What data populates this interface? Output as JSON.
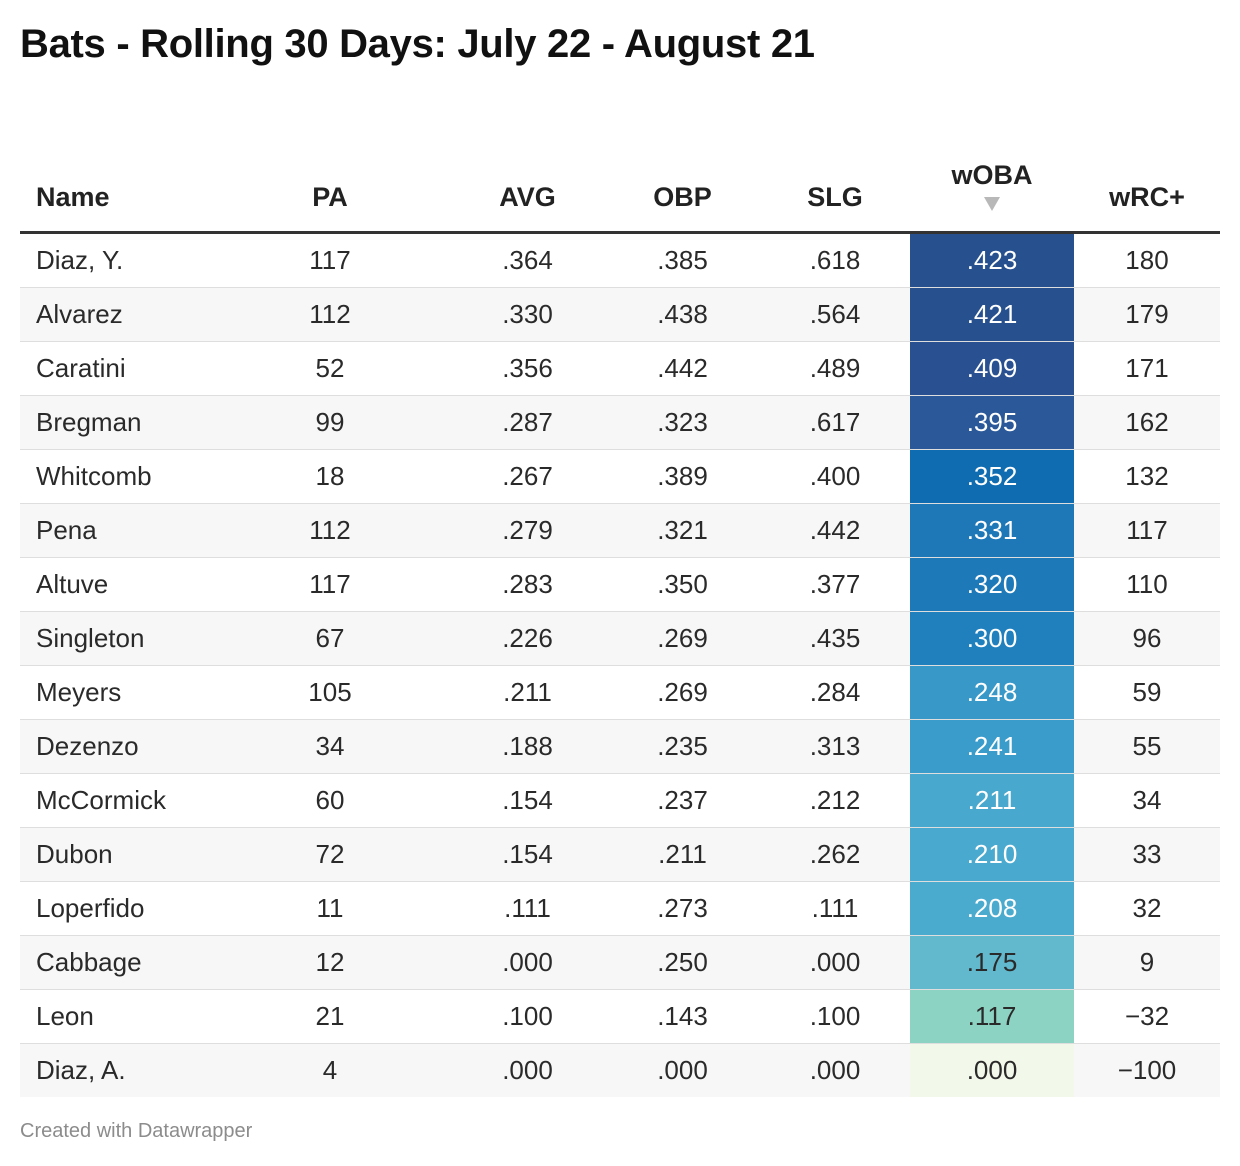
{
  "title": "Bats - Rolling 30 Days: July 22 - August 21",
  "footer": "Created with Datawrapper",
  "chart_data": {
    "type": "table",
    "columns": [
      "Name",
      "PA",
      "AVG",
      "OBP",
      "SLG",
      "wOBA",
      "wRC+"
    ],
    "sorted_by": "wOBA",
    "sort_order": "descending",
    "rows": [
      [
        "Diaz, Y.",
        "117",
        ".364",
        ".385",
        ".618",
        ".423",
        "180"
      ],
      [
        "Alvarez",
        "112",
        ".330",
        ".438",
        ".564",
        ".421",
        "179"
      ],
      [
        "Caratini",
        "52",
        ".356",
        ".442",
        ".489",
        ".409",
        "171"
      ],
      [
        "Bregman",
        "99",
        ".287",
        ".323",
        ".617",
        ".395",
        "162"
      ],
      [
        "Whitcomb",
        "18",
        ".267",
        ".389",
        ".400",
        ".352",
        "132"
      ],
      [
        "Pena",
        "112",
        ".279",
        ".321",
        ".442",
        ".331",
        "117"
      ],
      [
        "Altuve",
        "117",
        ".283",
        ".350",
        ".377",
        ".320",
        "110"
      ],
      [
        "Singleton",
        "67",
        ".226",
        ".269",
        ".435",
        ".300",
        "96"
      ],
      [
        "Meyers",
        "105",
        ".211",
        ".269",
        ".284",
        ".248",
        "59"
      ],
      [
        "Dezenzo",
        "34",
        ".188",
        ".235",
        ".313",
        ".241",
        "55"
      ],
      [
        "McCormick",
        "60",
        ".154",
        ".237",
        ".212",
        ".211",
        "34"
      ],
      [
        "Dubon",
        "72",
        ".154",
        ".211",
        ".262",
        ".210",
        "33"
      ],
      [
        "Loperfido",
        "11",
        ".111",
        ".273",
        ".111",
        ".208",
        "32"
      ],
      [
        "Cabbage",
        "12",
        ".000",
        ".250",
        ".000",
        ".175",
        "9"
      ],
      [
        "Leon",
        "21",
        ".100",
        ".143",
        ".100",
        ".117",
        "−32"
      ],
      [
        "Diaz, A.",
        "4",
        ".000",
        ".000",
        ".000",
        ".000",
        "−100"
      ]
    ],
    "woba_colors": [
      "#27508f",
      "#27508f",
      "#295192",
      "#2a5898",
      "#0f6cb1",
      "#1e78b8",
      "#1e79b9",
      "#1f80bd",
      "#3899c9",
      "#3a9cca",
      "#48a8cd",
      "#49a9ce",
      "#4babcf",
      "#62b8cc",
      "#8dd3c4",
      "#f2f9ea"
    ],
    "woba_text_colors": [
      "#ffffff",
      "#ffffff",
      "#ffffff",
      "#ffffff",
      "#ffffff",
      "#ffffff",
      "#ffffff",
      "#ffffff",
      "#ffffff",
      "#ffffff",
      "#ffffff",
      "#ffffff",
      "#ffffff",
      "#2a2a2a",
      "#2a2a2a",
      "#2a2a2a"
    ]
  }
}
